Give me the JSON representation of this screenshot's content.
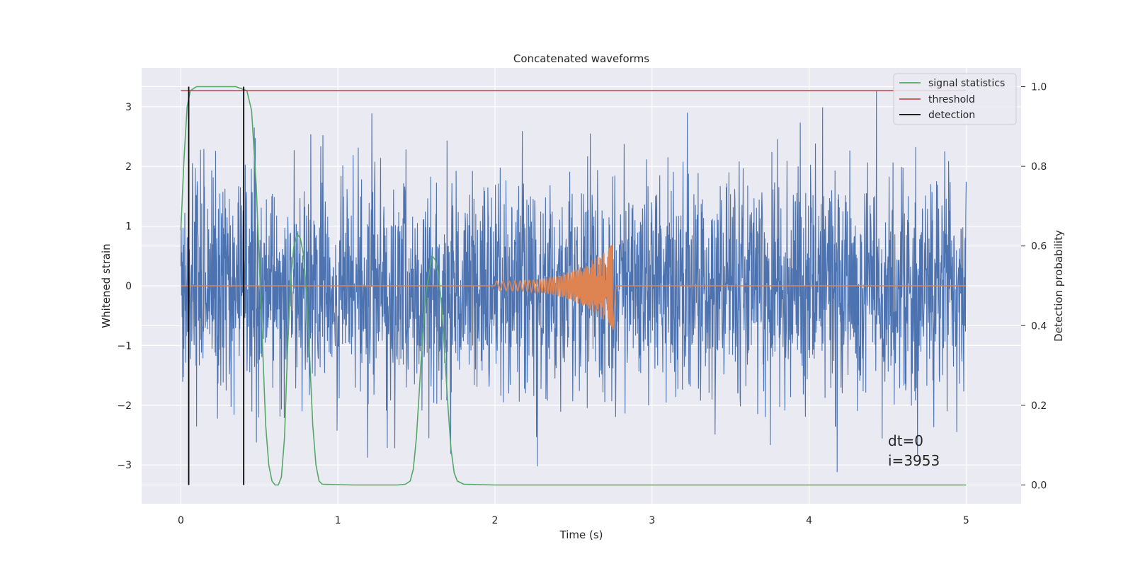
{
  "chart_data": {
    "type": "line",
    "title": "Concatenated waveforms",
    "xlabel": "Time (s)",
    "ylabel": "Whitened strain",
    "ylabel_right": "Detection probability",
    "xlim": [
      -0.25,
      5.35
    ],
    "ylim": [
      -3.65,
      3.65
    ],
    "ylim_right": [
      -0.047,
      1.047
    ],
    "x_ticks": [
      0,
      1,
      2,
      3,
      4,
      5
    ],
    "x_tick_labels": [
      "0",
      "1",
      "2",
      "3",
      "4",
      "5"
    ],
    "y_ticks": [
      -3,
      -2,
      -1,
      0,
      1,
      2,
      3
    ],
    "y_tick_labels": [
      "−3",
      "−2",
      "−1",
      "0",
      "1",
      "2",
      "3"
    ],
    "y_right_ticks": [
      0.0,
      0.2,
      0.4,
      0.6,
      0.8,
      1.0
    ],
    "y_right_tick_labels": [
      "0.0",
      "0.2",
      "0.4",
      "0.6",
      "0.8",
      "1.0"
    ],
    "grid": true,
    "legend_position": "top-right",
    "background": "#eaeaf2",
    "series": [
      {
        "name": "",
        "kind": "noise",
        "color": "#4c72b0",
        "x_range": [
          0,
          5
        ],
        "typical_amplitude": 1.1,
        "max_value": 3.55,
        "min_value": -3.3
      },
      {
        "name": "",
        "kind": "chirp",
        "color": "#dd8452",
        "x_range": [
          0,
          5
        ],
        "chirp_start": 2.0,
        "chirp_end": 2.75,
        "peak_amplitude": 0.7,
        "min_value": -0.8
      },
      {
        "name": "signal statistics",
        "axis": "right",
        "color": "#55a868",
        "x": [
          0.0,
          0.02,
          0.04,
          0.06,
          0.1,
          0.2,
          0.35,
          0.42,
          0.45,
          0.48,
          0.51,
          0.54,
          0.56,
          0.58,
          0.6,
          0.62,
          0.64,
          0.66,
          0.68,
          0.7,
          0.72,
          0.74,
          0.76,
          0.78,
          0.8,
          0.82,
          0.84,
          0.86,
          0.88,
          0.9,
          1.0,
          1.1,
          1.2,
          1.3,
          1.38,
          1.43,
          1.46,
          1.48,
          1.5,
          1.52,
          1.54,
          1.56,
          1.58,
          1.6,
          1.62,
          1.64,
          1.66,
          1.68,
          1.7,
          1.72,
          1.74,
          1.76,
          1.8,
          2.0,
          3.0,
          4.0,
          5.0
        ],
        "y": [
          0.64,
          0.82,
          0.95,
          0.99,
          1.0,
          1.0,
          1.0,
          0.99,
          0.94,
          0.75,
          0.45,
          0.15,
          0.05,
          0.01,
          0.0,
          0.0,
          0.02,
          0.12,
          0.35,
          0.52,
          0.6,
          0.63,
          0.62,
          0.58,
          0.48,
          0.32,
          0.15,
          0.05,
          0.01,
          0.002,
          0.001,
          0.0,
          0.0,
          0.0,
          0.0,
          0.002,
          0.01,
          0.04,
          0.12,
          0.25,
          0.38,
          0.48,
          0.53,
          0.575,
          0.565,
          0.53,
          0.45,
          0.33,
          0.2,
          0.09,
          0.03,
          0.01,
          0.002,
          0.0,
          0.0,
          0.0,
          0.0
        ]
      },
      {
        "name": "threshold",
        "axis": "right",
        "color": "#c44e52",
        "x": [
          0,
          5
        ],
        "y": [
          0.99,
          0.99
        ]
      },
      {
        "name": "detection",
        "axis": "right",
        "color": "#000000",
        "x_positions": [
          0.05,
          0.4
        ],
        "y_range": [
          0.0,
          1.0
        ]
      }
    ],
    "annotations": [
      "dt=0",
      "i=3953"
    ]
  }
}
